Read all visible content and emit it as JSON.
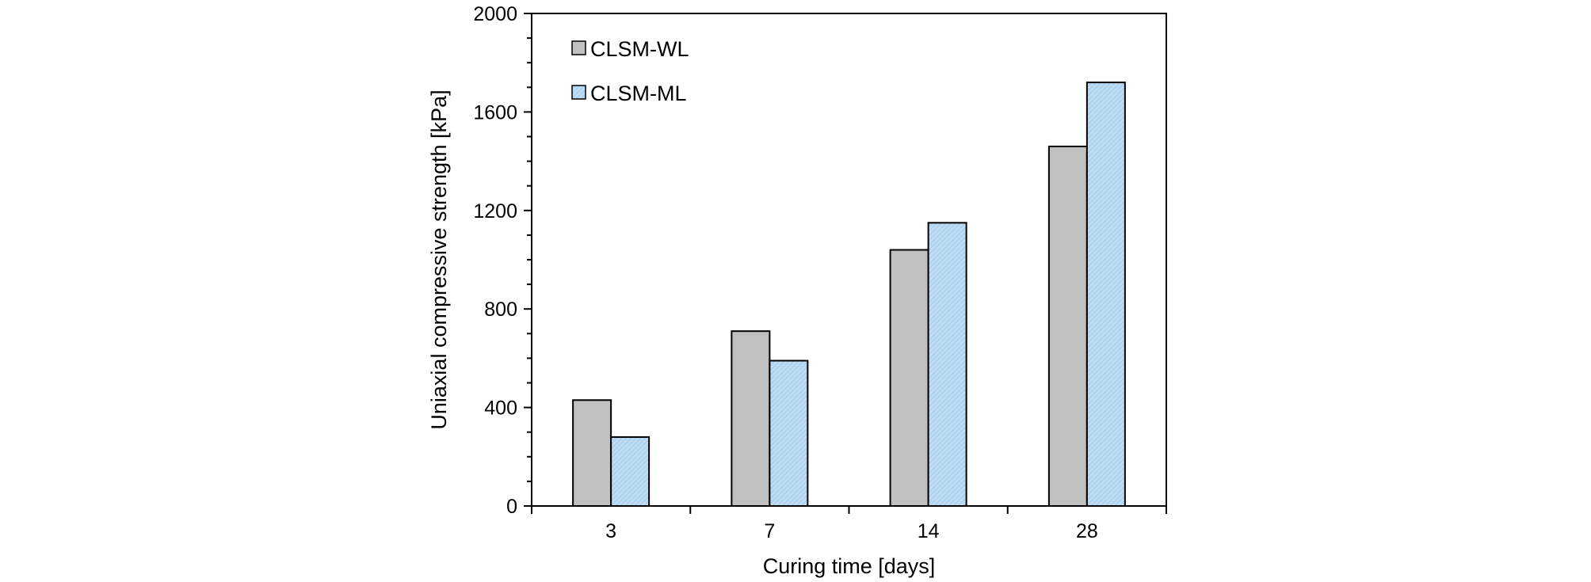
{
  "chart_data": {
    "type": "bar",
    "categories": [
      "3",
      "7",
      "14",
      "28"
    ],
    "series": [
      {
        "name": "CLSM-WL",
        "values": [
          430,
          710,
          1040,
          1460
        ],
        "color": "#c0c0c0"
      },
      {
        "name": "CLSM-ML",
        "values": [
          280,
          590,
          1150,
          1720
        ],
        "color": "#bcdcf4"
      }
    ],
    "xlabel": "Curing time [days]",
    "ylabel": "Uniaxial compressive strength [kPa]",
    "ylim": [
      0,
      2000
    ],
    "yticks": [
      0,
      400,
      800,
      1200,
      1600,
      2000
    ],
    "ytick_labels": [
      "0",
      "400",
      "800",
      "1200",
      "1600",
      "2000"
    ],
    "grid": false,
    "legend_position": "top-left"
  }
}
